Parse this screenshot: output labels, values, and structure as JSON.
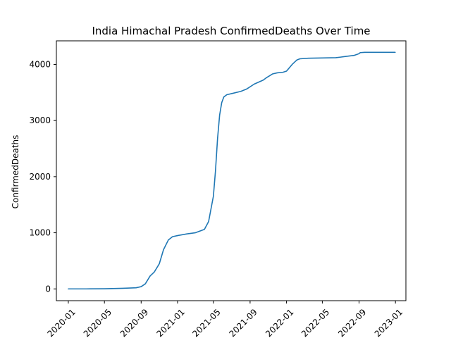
{
  "chart_data": {
    "type": "line",
    "title": "India Himachal Pradesh ConfirmedDeaths Over Time",
    "xlabel": "",
    "ylabel": "ConfirmedDeaths",
    "x_ticks": [
      "2020-01",
      "2020-05",
      "2020-09",
      "2021-01",
      "2021-05",
      "2021-09",
      "2022-01",
      "2022-05",
      "2022-09",
      "2023-01"
    ],
    "y_ticks": [
      0,
      1000,
      2000,
      3000,
      4000
    ],
    "xlim": [
      "2019-11-22",
      "2023-02-05"
    ],
    "ylim": [
      -210,
      4420
    ],
    "grid": false,
    "legend": "none",
    "line_color": "#1f77b4",
    "series": [
      {
        "x": [
          "2020-01-01",
          "2020-03-01",
          "2020-05-01",
          "2020-07-01",
          "2020-08-15",
          "2020-09-01",
          "2020-09-15",
          "2020-10-01",
          "2020-10-15",
          "2020-11-01",
          "2020-11-15",
          "2020-12-01",
          "2020-12-15",
          "2021-01-01",
          "2021-02-01",
          "2021-03-01",
          "2021-04-01",
          "2021-04-15",
          "2021-05-01",
          "2021-05-08",
          "2021-05-15",
          "2021-05-22",
          "2021-05-29",
          "2021-06-05",
          "2021-06-15",
          "2021-07-01",
          "2021-08-01",
          "2021-08-20",
          "2021-09-15",
          "2021-10-15",
          "2021-10-25",
          "2021-11-15",
          "2021-12-01",
          "2021-12-20",
          "2022-01-01",
          "2022-01-20",
          "2022-02-05",
          "2022-02-15",
          "2022-03-15",
          "2022-06-15",
          "2022-07-01",
          "2022-07-15",
          "2022-08-15",
          "2022-08-31",
          "2022-09-05",
          "2022-09-20",
          "2022-12-31"
        ],
        "y": [
          0,
          0,
          2,
          10,
          20,
          40,
          90,
          230,
          300,
          450,
          700,
          870,
          930,
          950,
          980,
          1000,
          1060,
          1200,
          1650,
          2100,
          2680,
          3100,
          3320,
          3420,
          3460,
          3480,
          3520,
          3560,
          3650,
          3720,
          3760,
          3830,
          3850,
          3860,
          3880,
          4000,
          4080,
          4100,
          4110,
          4120,
          4130,
          4140,
          4160,
          4190,
          4210,
          4215,
          4215
        ]
      }
    ]
  }
}
